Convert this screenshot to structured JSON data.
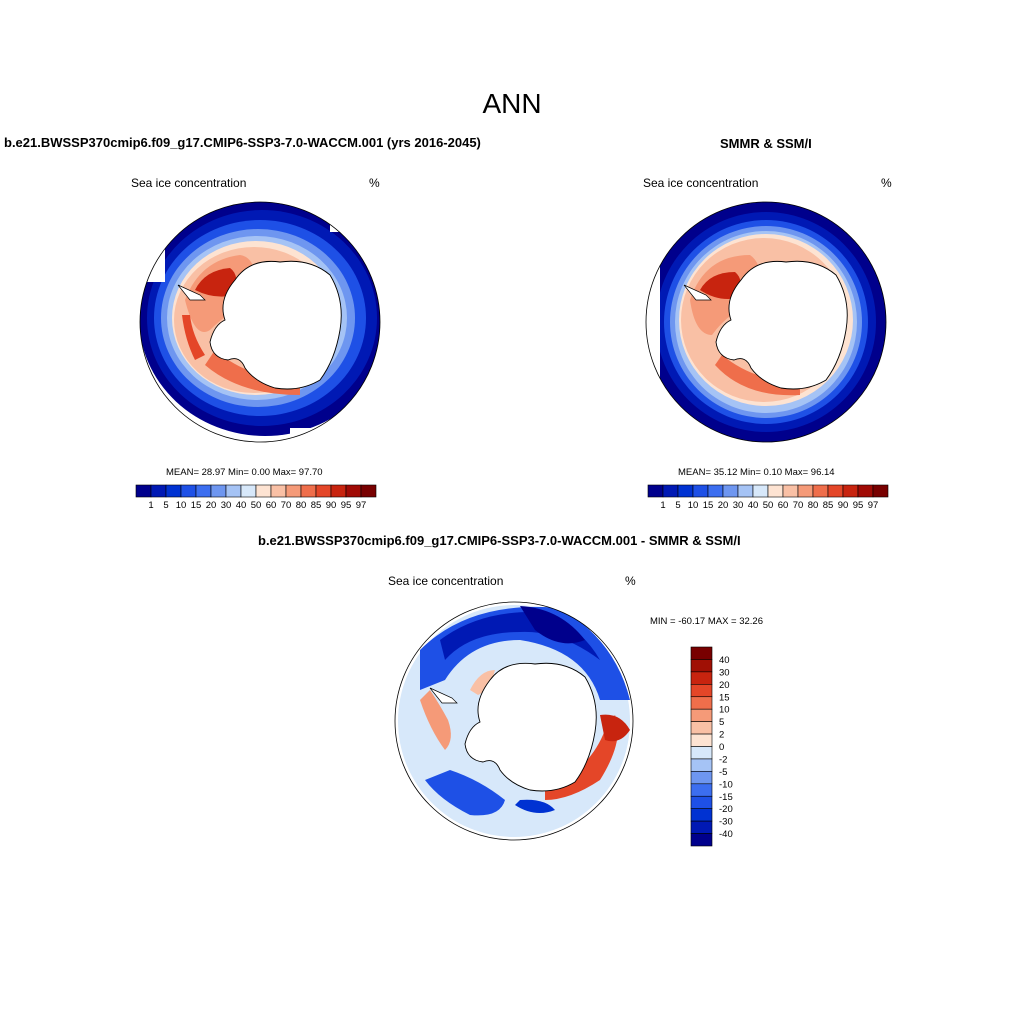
{
  "figure": {
    "title": "ANN"
  },
  "panels": {
    "model": {
      "title": "b.e21.BWSSP370cmip6.f09_g17.CMIP6-SSP3-7.0-WACCM.001 (yrs 2016-2045)",
      "variable": "Sea ice concentration",
      "units": "%",
      "stats": "MEAN=  28.97  Min=   0.00  Max=  97.70",
      "stats_values": {
        "mean": 28.97,
        "min": 0.0,
        "max": 97.7
      }
    },
    "obs": {
      "title": "SMMR & SSM/I",
      "variable": "Sea ice concentration",
      "units": "%",
      "stats": "MEAN=  35.12  Min=   0.10  Max=  96.14",
      "stats_values": {
        "mean": 35.12,
        "min": 0.1,
        "max": 96.14
      }
    },
    "diff": {
      "title": "b.e21.BWSSP370cmip6.f09_g17.CMIP6-SSP3-7.0-WACCM.001 - SMMR & SSM/I",
      "variable": "Sea ice concentration",
      "units": "%",
      "stats": "MIN = -60.17 MAX =  32.26",
      "stats_values": {
        "min": -60.17,
        "max": 32.26
      }
    }
  },
  "colorbars": {
    "concentration": {
      "labels": [
        "1",
        "5",
        "10",
        "15",
        "20",
        "30",
        "40",
        "50",
        "60",
        "70",
        "80",
        "85",
        "90",
        "95",
        "97"
      ],
      "colors": [
        "#00008c",
        "#0019b4",
        "#0032d2",
        "#1e50e6",
        "#3c6ef0",
        "#6e96f0",
        "#a5c3f5",
        "#d7e8fa",
        "#fde3d2",
        "#f9c0a5",
        "#f59a78",
        "#ef6e4b",
        "#e44628",
        "#c8240f",
        "#a00a05",
        "#780000"
      ]
    },
    "difference": {
      "labels": [
        "40",
        "30",
        "20",
        "15",
        "10",
        "5",
        "2",
        "0",
        "-2",
        "-5",
        "-10",
        "-15",
        "-20",
        "-30",
        "-40"
      ],
      "colors": [
        "#780000",
        "#a01005",
        "#c8240f",
        "#e44628",
        "#ef6e4b",
        "#f59a78",
        "#f9c0a5",
        "#fde3d2",
        "#d7e8fa",
        "#a5c3f5",
        "#6e96f0",
        "#3c6ef0",
        "#1e50e6",
        "#0032d2",
        "#0019b4",
        "#00008c"
      ]
    }
  },
  "colors": {
    "land": "#ffffff",
    "outline": "#000000"
  }
}
